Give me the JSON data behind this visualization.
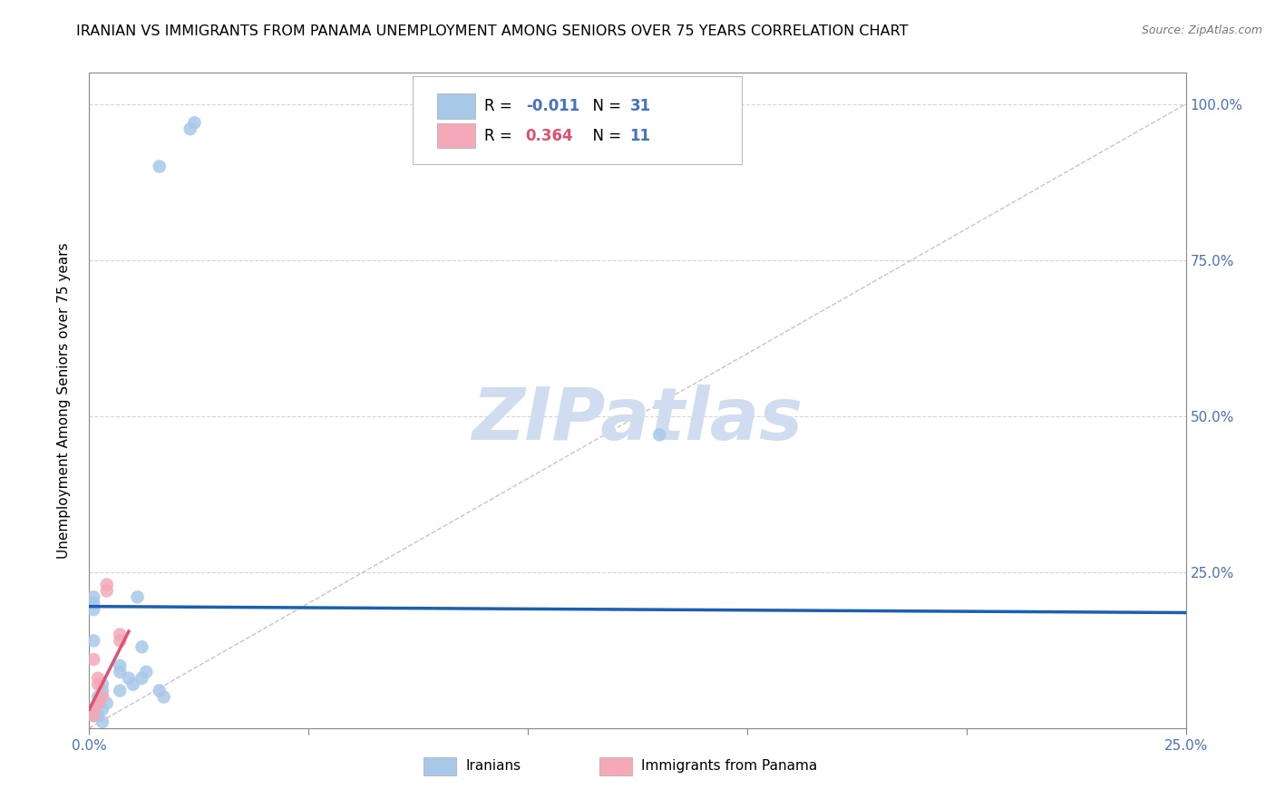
{
  "title": "IRANIAN VS IMMIGRANTS FROM PANAMA UNEMPLOYMENT AMONG SENIORS OVER 75 YEARS CORRELATION CHART",
  "source": "Source: ZipAtlas.com",
  "ylabel": "Unemployment Among Seniors over 75 years",
  "xlim": [
    0.0,
    0.25
  ],
  "ylim": [
    0.0,
    1.05
  ],
  "xticks": [
    0.0,
    0.05,
    0.1,
    0.15,
    0.2,
    0.25
  ],
  "yticks": [
    0.0,
    0.25,
    0.5,
    0.75,
    1.0
  ],
  "xticklabels": [
    "0.0%",
    "",
    "",
    "",
    "",
    "25.0%"
  ],
  "yticklabels": [
    "",
    "25.0%",
    "50.0%",
    "75.0%",
    "100.0%"
  ],
  "legend_r_blue": "-0.011",
  "legend_n_blue": "31",
  "legend_r_pink": "0.364",
  "legend_n_pink": "11",
  "blue_scatter_x": [
    0.016,
    0.023,
    0.024,
    0.001,
    0.001,
    0.002,
    0.002,
    0.003,
    0.003,
    0.002,
    0.003,
    0.003,
    0.004,
    0.003,
    0.007,
    0.009,
    0.01,
    0.012,
    0.011,
    0.007,
    0.007,
    0.013,
    0.012,
    0.016,
    0.017,
    0.13,
    0.001,
    0.001,
    0.001,
    0.001,
    0.001
  ],
  "blue_scatter_y": [
    0.9,
    0.96,
    0.97,
    0.02,
    0.03,
    0.02,
    0.04,
    0.03,
    0.01,
    0.05,
    0.05,
    0.06,
    0.04,
    0.07,
    0.1,
    0.08,
    0.07,
    0.13,
    0.21,
    0.09,
    0.06,
    0.09,
    0.08,
    0.06,
    0.05,
    0.47,
    0.2,
    0.21,
    0.19,
    0.02,
    0.14
  ],
  "pink_scatter_x": [
    0.001,
    0.001,
    0.002,
    0.003,
    0.002,
    0.002,
    0.004,
    0.004,
    0.007,
    0.007,
    0.001
  ],
  "pink_scatter_y": [
    0.03,
    0.02,
    0.04,
    0.05,
    0.07,
    0.08,
    0.22,
    0.23,
    0.14,
    0.15,
    0.11
  ],
  "blue_line_x": [
    0.0,
    0.25
  ],
  "blue_line_y": [
    0.195,
    0.185
  ],
  "pink_line_x": [
    0.0,
    0.009
  ],
  "pink_line_y": [
    0.03,
    0.155
  ],
  "diagonal_line_x": [
    0.0,
    0.25
  ],
  "diagonal_line_y": [
    0.0,
    1.0
  ],
  "scatter_size": 110,
  "blue_color": "#a8c8e8",
  "pink_color": "#f4a8b8",
  "blue_line_color": "#1a5fb4",
  "pink_line_color": "#e05070",
  "diagonal_color": "#ccb8c0",
  "watermark": "ZIPatlas",
  "watermark_color": "#d0dcf0"
}
